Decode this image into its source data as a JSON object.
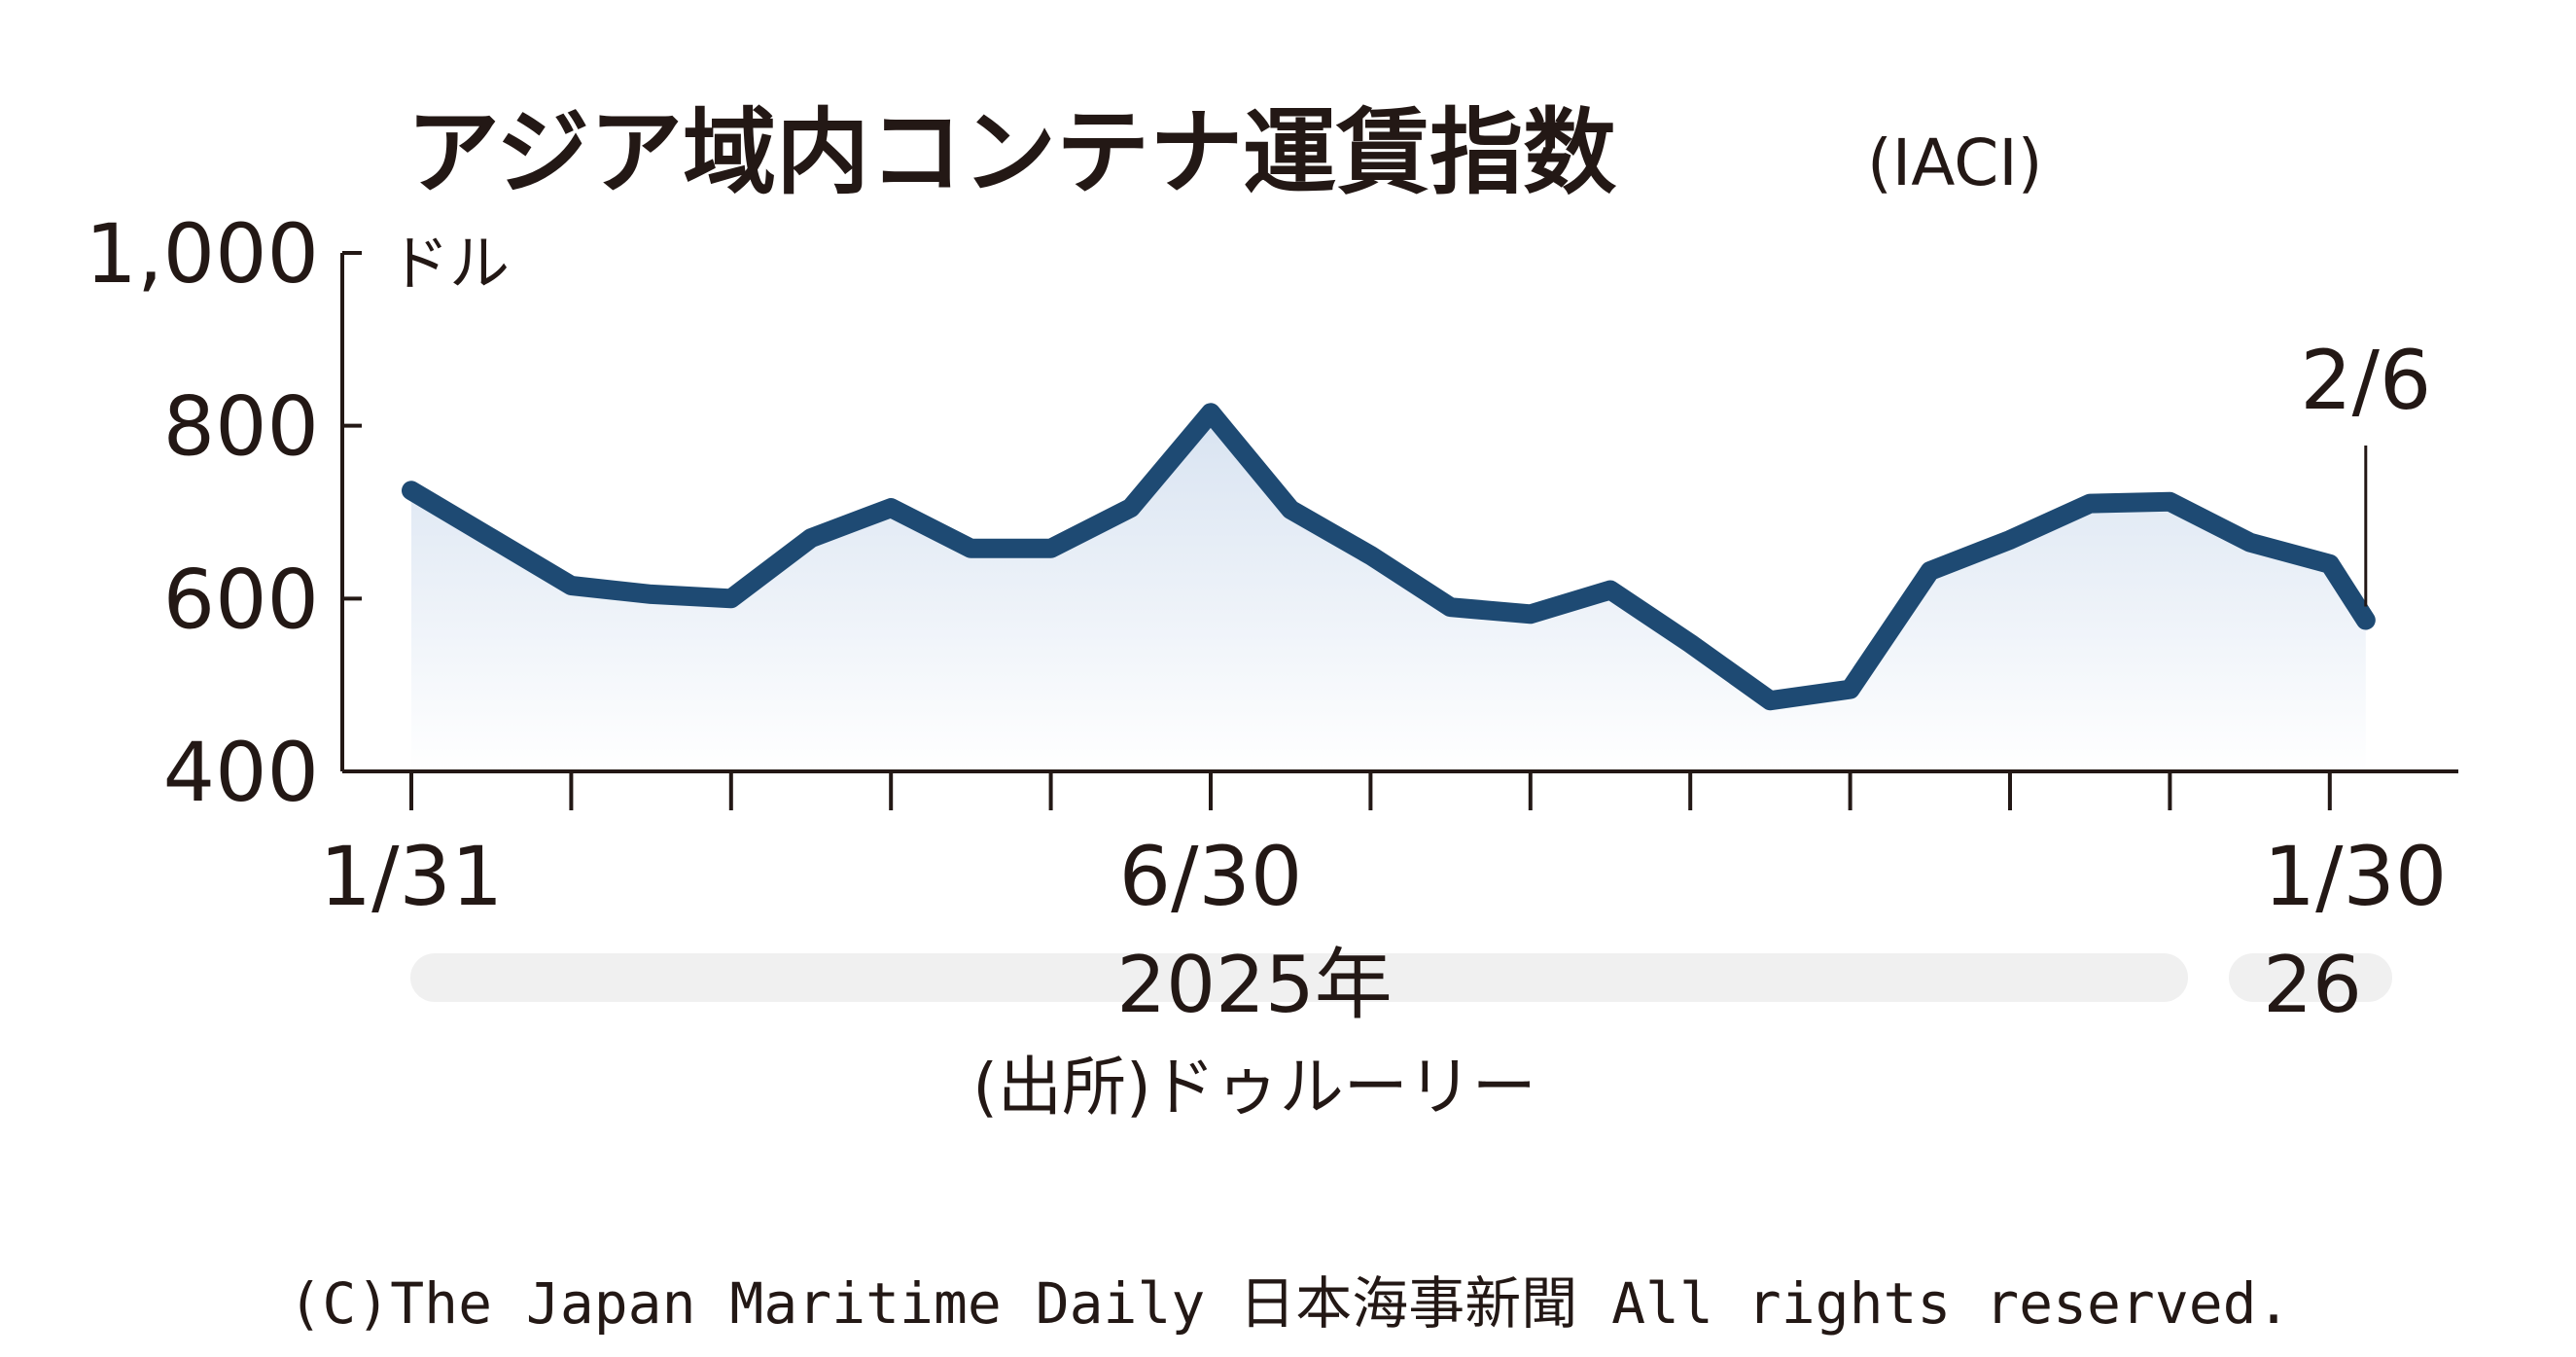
{
  "chart_data": {
    "type": "area",
    "title": "アジア域内コンテナ運賃指数",
    "title_suffix": "(IACI)",
    "y_unit": "ドル",
    "ylim": [
      400,
      1000
    ],
    "y_ticks": [
      "1,000",
      "800",
      "600",
      "400"
    ],
    "y_tick_values": [
      1000,
      800,
      600,
      400
    ],
    "x_tick_labels": [
      {
        "label": "1/31",
        "index": 0
      },
      {
        "label": "6/30",
        "index": 10
      },
      {
        "label": "1/30",
        "index": 24
      }
    ],
    "year_labels": [
      "2025年",
      "26"
    ],
    "annotation": "2/6",
    "source": "(出所)ドゥルーリー",
    "x": [
      "2025-01-31",
      "2025-02-14",
      "2025-02-28",
      "2025-03-14",
      "2025-03-31",
      "2025-04-14",
      "2025-04-30",
      "2025-05-15",
      "2025-05-30",
      "2025-06-13",
      "2025-06-30",
      "2025-07-15",
      "2025-07-31",
      "2025-08-15",
      "2025-08-29",
      "2025-09-15",
      "2025-09-30",
      "2025-10-15",
      "2025-10-31",
      "2025-11-14",
      "2025-11-28",
      "2025-12-15",
      "2025-12-31",
      "2026-01-15",
      "2026-01-30",
      "2026-02-06"
    ],
    "values": [
      725,
      670,
      615,
      605,
      600,
      670,
      705,
      658,
      658,
      705,
      815,
      703,
      650,
      590,
      582,
      610,
      548,
      482,
      495,
      632,
      668,
      710,
      712,
      665,
      640,
      575
    ],
    "line_color": "#1e4a73",
    "fill_color_top": "#d8e3f1"
  },
  "footer": {
    "copyright": "(C)The Japan Maritime Daily 日本海事新聞 All rights reserved."
  }
}
